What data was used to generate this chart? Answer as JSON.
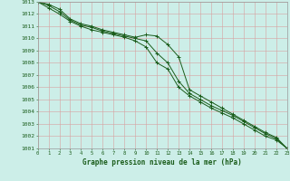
{
  "xlabel": "Graphe pression niveau de la mer (hPa)",
  "bg_color": "#cceee8",
  "grid_color": "#d8a0a0",
  "line_color": "#1a5c1a",
  "x": [
    0,
    1,
    2,
    3,
    4,
    5,
    6,
    7,
    8,
    9,
    10,
    11,
    12,
    13,
    14,
    15,
    16,
    17,
    18,
    19,
    20,
    21,
    22,
    23
  ],
  "line1": [
    1013.0,
    1012.8,
    1012.4,
    1011.6,
    1011.2,
    1011.0,
    1010.7,
    1010.5,
    1010.3,
    1010.1,
    1010.3,
    1010.2,
    1009.5,
    1008.5,
    1005.8,
    1005.3,
    1004.8,
    1004.3,
    1003.8,
    1003.3,
    1002.8,
    1002.3,
    1001.9,
    1001.0
  ],
  "line2": [
    1013.0,
    1012.7,
    1012.2,
    1011.5,
    1011.1,
    1010.9,
    1010.6,
    1010.4,
    1010.2,
    1010.0,
    1009.8,
    1008.8,
    1008.0,
    1006.5,
    1005.5,
    1005.0,
    1004.5,
    1004.1,
    1003.7,
    1003.2,
    1002.7,
    1002.2,
    1001.8,
    1001.0
  ],
  "line3": [
    1013.0,
    1012.5,
    1012.0,
    1011.4,
    1011.0,
    1010.7,
    1010.5,
    1010.3,
    1010.1,
    1009.8,
    1009.3,
    1008.0,
    1007.5,
    1006.0,
    1005.3,
    1004.8,
    1004.3,
    1003.9,
    1003.5,
    1003.0,
    1002.5,
    1002.0,
    1001.7,
    1001.0
  ],
  "ylim": [
    1001,
    1013
  ],
  "xlim": [
    0,
    23
  ]
}
